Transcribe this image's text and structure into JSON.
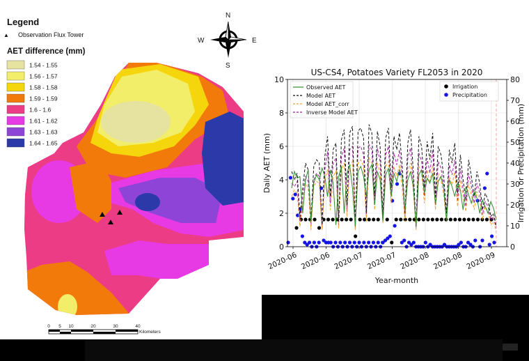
{
  "colors": {
    "c1": "#e6e2a0",
    "c2": "#f3ee6a",
    "c3": "#f5d60d",
    "c4": "#f27a0b",
    "c5": "#ed3c86",
    "c6": "#e73ae4",
    "c7": "#8f44d8",
    "c8": "#2b3aa8"
  },
  "map": {
    "legend_title": "Legend",
    "tower_label": "Observation Flux Tower",
    "aet_title": "AET difference (mm)",
    "classes": [
      {
        "label": "1.54 - 1.55",
        "color": "#e6e2a0"
      },
      {
        "label": "1.56 - 1.57",
        "color": "#f3ee6a"
      },
      {
        "label": "1.58 - 1.58",
        "color": "#f5d60d"
      },
      {
        "label": "1.59 - 1.59",
        "color": "#f27a0b"
      },
      {
        "label": "1.6 - 1.6",
        "color": "#ed3c86"
      },
      {
        "label": "1.61 - 1.62",
        "color": "#e73ae4"
      },
      {
        "label": "1.63 - 1.63",
        "color": "#8f44d8"
      },
      {
        "label": "1.64 - 1.65",
        "color": "#2b3aa8"
      }
    ],
    "compass": {
      "n": "N",
      "s": "S",
      "e": "E",
      "w": "W"
    },
    "scale": {
      "ticks": [
        "0",
        "5",
        "10",
        "20",
        "30",
        "40"
      ],
      "unit": "Kilometers"
    },
    "tower_count": 3
  },
  "chart_data": {
    "type": "line",
    "title": "US-CS4, Potatoes Variety FL2053 in 2020",
    "xlabel": "Year-month",
    "ylabel": "Daily AET (mm)",
    "ylabel_right": "Irrigation or Precipitation (mm)",
    "x_ticklabels": [
      "2020-06",
      "2020-06",
      "2020-07",
      "2020-07",
      "2020-08",
      "2020-08",
      "2020-09"
    ],
    "ylim": [
      0,
      10
    ],
    "y_ticks": [
      0,
      2,
      4,
      6,
      8,
      10
    ],
    "ylim_right": [
      0,
      80
    ],
    "y_ticks_right": [
      0,
      10,
      20,
      30,
      40,
      50,
      60,
      70,
      80
    ],
    "legend_left": [
      "Observed AET",
      "Model AET",
      "Model AET_corr",
      "Inverse Model AET"
    ],
    "legend_right": [
      "Irrigation",
      "Precipitation"
    ],
    "grid": true,
    "legend_placement": "top-left and top-right",
    "series": [
      {
        "name": "Observed AET",
        "color": "#2e8b2e",
        "style": "solid",
        "values": [
          3.5,
          4.5,
          4.1,
          4.2,
          2.0,
          4.0,
          4.6,
          1.5,
          3.8,
          4.3,
          4.0,
          4.7,
          4.2,
          3.0,
          4.6,
          3.8,
          1.3,
          4.2,
          4.8,
          2.0,
          4.4,
          4.9,
          3.5,
          1.2,
          4.5,
          4.8,
          4.2,
          3.0,
          4.6,
          4.9,
          2.5,
          4.5,
          4.0,
          1.5,
          4.3,
          4.7,
          3.0,
          4.4,
          3.9,
          4.6,
          4.2,
          2.2,
          4.0,
          4.5,
          3.6,
          1.2,
          4.3,
          4.6,
          3.2,
          4.1,
          3.8,
          4.4,
          2.5,
          3.9,
          4.2,
          3.5,
          1.5,
          4.0,
          3.6,
          3.0,
          3.8,
          3.4,
          2.2,
          3.6,
          3.1,
          2.6,
          3.3,
          2.9,
          2.0,
          2.8,
          2.4,
          2.0,
          2.7,
          2.3,
          1.6
        ]
      },
      {
        "name": "Model AET",
        "color": "#111111",
        "style": "dashed",
        "values": [
          4.5,
          4.0,
          4.4,
          1.8,
          3.5,
          5.0,
          4.6,
          1.6,
          4.8,
          5.2,
          5.0,
          1.3,
          5.4,
          6.6,
          3.0,
          5.8,
          6.2,
          1.5,
          6.4,
          7.0,
          2.5,
          6.8,
          7.2,
          1.2,
          6.9,
          7.1,
          6.5,
          2.0,
          7.3,
          6.8,
          3.0,
          6.9,
          6.0,
          1.8,
          6.5,
          7.1,
          3.5,
          6.6,
          5.8,
          6.8,
          4.8,
          2.0,
          6.2,
          7.0,
          4.5,
          1.2,
          6.6,
          6.0,
          3.5,
          6.3,
          5.2,
          6.8,
          3.0,
          6.0,
          5.5,
          4.2,
          2.0,
          5.8,
          5.0,
          6.2,
          3.2,
          5.5,
          4.0,
          2.8,
          5.2,
          4.2,
          3.0,
          4.5,
          3.8,
          2.2,
          3.2,
          2.8,
          1.8,
          2.0,
          1.2
        ]
      },
      {
        "name": "Model AET_corr",
        "color": "#f5a030",
        "style": "dashed",
        "values": [
          3.0,
          3.4,
          3.2,
          1.2,
          2.5,
          3.8,
          3.5,
          1.0,
          3.6,
          3.9,
          3.8,
          1.0,
          4.1,
          4.6,
          2.2,
          4.2,
          4.5,
          1.1,
          4.6,
          5.0,
          1.8,
          4.8,
          5.1,
          1.0,
          5.0,
          5.2,
          4.8,
          1.5,
          5.3,
          5.0,
          2.2,
          5.0,
          4.4,
          1.4,
          4.8,
          5.1,
          2.6,
          4.8,
          4.2,
          4.9,
          3.5,
          1.5,
          4.5,
          5.0,
          3.3,
          1.0,
          4.8,
          4.4,
          2.6,
          4.6,
          3.8,
          4.9,
          2.2,
          4.4,
          4.0,
          3.1,
          1.5,
          4.2,
          3.7,
          4.5,
          2.4,
          4.0,
          3.0,
          2.1,
          3.8,
          3.1,
          2.2,
          3.3,
          2.8,
          1.6,
          2.4,
          2.1,
          1.3,
          1.5,
          0.9
        ]
      },
      {
        "name": "Inverse Model AET",
        "color": "#a020a0",
        "style": "dashed",
        "values": [
          3.8,
          3.6,
          3.9,
          1.5,
          3.0,
          4.2,
          3.9,
          1.3,
          4.0,
          4.4,
          4.2,
          1.1,
          4.6,
          5.7,
          2.6,
          5.0,
          5.3,
          1.3,
          5.4,
          5.9,
          2.1,
          5.8,
          6.0,
          1.1,
          5.9,
          6.0,
          5.5,
          1.8,
          6.1,
          5.8,
          2.6,
          5.9,
          5.1,
          1.6,
          5.5,
          6.0,
          3.0,
          5.6,
          4.9,
          5.8,
          4.1,
          1.8,
          5.3,
          5.9,
          3.8,
          1.1,
          5.6,
          5.1,
          3.0,
          5.3,
          4.4,
          5.8,
          2.6,
          5.1,
          4.7,
          3.6,
          1.8,
          4.9,
          4.3,
          5.2,
          2.7,
          4.7,
          3.4,
          2.4,
          4.4,
          3.6,
          2.6,
          3.8,
          3.2,
          1.9,
          2.7,
          2.4,
          1.6,
          1.8,
          1.1
        ]
      }
    ],
    "irrigation_mm": [
      9,
      13,
      13,
      13,
      13,
      9,
      13,
      13,
      13,
      13,
      13,
      13,
      13,
      5,
      13,
      13,
      13,
      13,
      13,
      2,
      13,
      2,
      13,
      13,
      13,
      13,
      13,
      13,
      13,
      13,
      13,
      13,
      13,
      13,
      13,
      13,
      13,
      13,
      13,
      13,
      13,
      13,
      13,
      13
    ],
    "precipitation_mm": [
      2,
      33,
      23,
      25,
      15,
      18,
      5,
      2,
      1,
      2,
      0,
      2,
      0,
      2,
      28,
      3,
      2,
      2,
      2,
      0,
      2,
      0,
      2,
      0,
      2,
      0,
      2,
      0,
      2,
      0,
      2,
      0,
      2,
      0,
      2,
      0,
      2,
      0,
      2,
      0,
      2,
      3,
      4,
      5,
      22,
      10,
      30,
      35,
      2,
      3,
      0,
      2,
      1,
      2,
      0,
      0,
      0,
      0,
      2,
      0,
      1,
      0,
      0,
      0,
      0,
      0,
      1,
      0,
      0,
      0,
      0,
      0,
      1,
      2,
      0,
      0,
      2,
      1,
      0,
      3,
      22,
      0,
      3,
      28,
      35,
      1,
      5,
      2
    ]
  }
}
